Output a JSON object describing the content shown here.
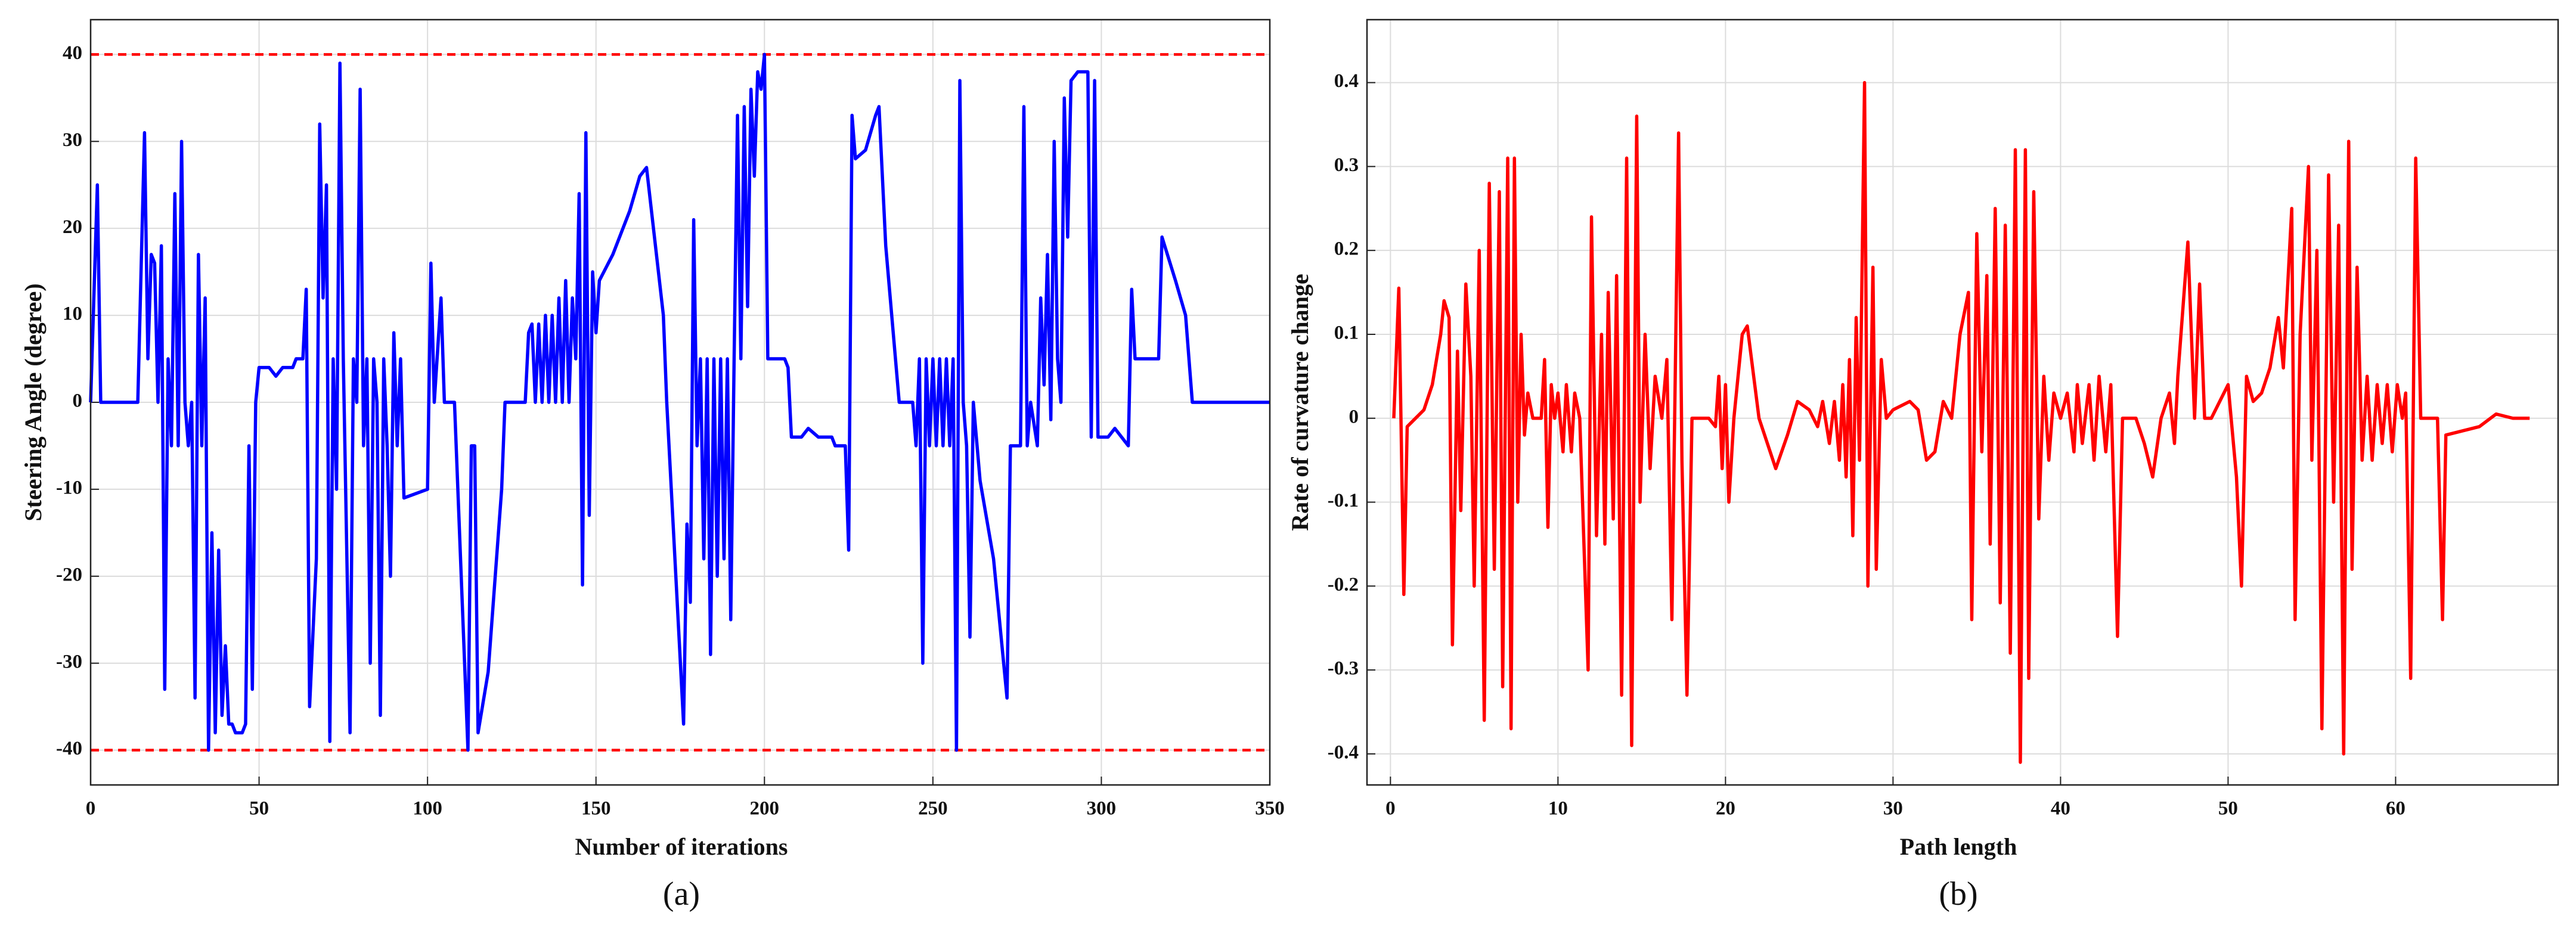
{
  "chart_data": [
    {
      "type": "line",
      "xlabel": "Number of iterations",
      "ylabel": "Steering Angle (degree)",
      "caption": "(a)",
      "xlim": [
        0,
        350
      ],
      "xticks": [
        0,
        50,
        100,
        150,
        200,
        250,
        300,
        350
      ],
      "ylim": [
        -44,
        44
      ],
      "yticks": [
        -40,
        -30,
        -20,
        -10,
        0,
        10,
        20,
        30,
        40
      ],
      "grid": true,
      "reference_lines": [
        {
          "value": 40,
          "color": "#ff0000"
        },
        {
          "value": -40,
          "color": "#ff0000"
        }
      ],
      "x": [
        0,
        2,
        3,
        14,
        16,
        17,
        18,
        19,
        20,
        21,
        22,
        23,
        24,
        25,
        26,
        27,
        28,
        29,
        30,
        31,
        32,
        33,
        34,
        35,
        36,
        37,
        38,
        39,
        40,
        41,
        42,
        43,
        45,
        46,
        47,
        48,
        49,
        50,
        53,
        55,
        57,
        60,
        61,
        63,
        64,
        65,
        67,
        68,
        69,
        70,
        71,
        72,
        73,
        74,
        75,
        77,
        78,
        79,
        80,
        81,
        82,
        83,
        84,
        85,
        86,
        87,
        88,
        89,
        90,
        91,
        92,
        93,
        100,
        101,
        102,
        104,
        105,
        108,
        112,
        113,
        114,
        115,
        118,
        122,
        123,
        129,
        130,
        131,
        132,
        133,
        134,
        135,
        136,
        137,
        138,
        139,
        140,
        141,
        142,
        143,
        144,
        145,
        146,
        147,
        148,
        149,
        150,
        151,
        155,
        160,
        163,
        165,
        170,
        171,
        176,
        177,
        178,
        179,
        180,
        181,
        182,
        183,
        184,
        185,
        186,
        187,
        188,
        189,
        190,
        191,
        192,
        193,
        194,
        195,
        196,
        197,
        198,
        199,
        200,
        201,
        206,
        207,
        208,
        211,
        213,
        216,
        220,
        221,
        224,
        225,
        226,
        227,
        230,
        233,
        234,
        236,
        240,
        244,
        245,
        246,
        247,
        248,
        249,
        250,
        251,
        252,
        253,
        254,
        255,
        256,
        257,
        258,
        259,
        260,
        261,
        262,
        264,
        268,
        272,
        273,
        276,
        277,
        278,
        279,
        281,
        282,
        283,
        284,
        285,
        286,
        287,
        288,
        289,
        290,
        291,
        293,
        296,
        297,
        298,
        299,
        302,
        304,
        308,
        309,
        310,
        317,
        318,
        322,
        325,
        327,
        350
      ],
      "series": [
        {
          "name": "steering",
          "color": "#0000ff",
          "values": [
            0,
            25,
            0,
            0,
            31,
            5,
            17,
            16,
            0,
            18,
            -33,
            5,
            -5,
            24,
            -5,
            30,
            0,
            -5,
            0,
            -34,
            17,
            -5,
            12,
            -40,
            -15,
            -38,
            -17,
            -36,
            -28,
            -37,
            -37,
            -38,
            -38,
            -37,
            -5,
            -33,
            0,
            4,
            4,
            3,
            4,
            4,
            5,
            5,
            13,
            -35,
            -18,
            32,
            12,
            25,
            -39,
            5,
            -10,
            39,
            5,
            -38,
            5,
            0,
            36,
            -5,
            5,
            -30,
            5,
            0,
            -36,
            5,
            -5,
            -20,
            8,
            -5,
            5,
            -11,
            -10,
            16,
            0,
            12,
            0,
            0,
            -40,
            -5,
            -5,
            -38,
            -31,
            -10,
            0,
            0,
            8,
            9,
            0,
            9,
            0,
            10,
            0,
            10,
            0,
            12,
            0,
            14,
            0,
            12,
            5,
            24,
            -21,
            31,
            -13,
            15,
            8,
            14,
            17,
            22,
            26,
            27,
            10,
            0,
            -37,
            -14,
            -23,
            21,
            -5,
            5,
            -18,
            5,
            -29,
            5,
            -20,
            5,
            -18,
            5,
            -25,
            5,
            33,
            5,
            34,
            11,
            36,
            26,
            38,
            36,
            40,
            5,
            5,
            4,
            -4,
            -4,
            -3,
            -4,
            -4,
            -5,
            -5,
            -17,
            33,
            28,
            29,
            33,
            34,
            18,
            0,
            0,
            -5,
            5,
            -30,
            5,
            -5,
            5,
            -5,
            5,
            -5,
            5,
            -5,
            5,
            -40,
            37,
            0,
            -5,
            -27,
            0,
            -9,
            -18,
            -34,
            -5,
            -5,
            34,
            -5,
            0,
            -5,
            12,
            2,
            17,
            -2,
            30,
            5,
            0,
            35,
            19,
            37,
            38,
            38,
            -4,
            37,
            -4,
            -4,
            -3,
            -5,
            13,
            5,
            5,
            19,
            14,
            10,
            0,
            0
          ]
        }
      ]
    },
    {
      "type": "line",
      "xlabel": "Path length",
      "ylabel": "Rate of curvature change",
      "caption": "(b)",
      "xlim": [
        -1.4,
        69.7
      ],
      "xticks": [
        0,
        10,
        20,
        30,
        40,
        50,
        60
      ],
      "ylim": [
        -0.437,
        0.475
      ],
      "yticks": [
        -0.4,
        -0.3,
        -0.2,
        -0.1,
        0,
        0.1,
        0.2,
        0.3,
        0.4
      ],
      "grid": true,
      "x": [
        0.2,
        0.5,
        0.8,
        1,
        1.5,
        2,
        2.5,
        3,
        3.2,
        3.5,
        3.7,
        4,
        4.2,
        4.5,
        4.8,
        5,
        5.3,
        5.6,
        5.9,
        6.2,
        6.5,
        6.7,
        7,
        7.2,
        7.4,
        7.6,
        7.8,
        8,
        8.2,
        8.5,
        9,
        9.2,
        9.4,
        9.6,
        9.8,
        10,
        10.3,
        10.5,
        10.8,
        11,
        11.3,
        11.8,
        12,
        12.3,
        12.6,
        12.8,
        13,
        13.3,
        13.5,
        13.8,
        14.1,
        14.4,
        14.7,
        14.9,
        15.2,
        15.5,
        15.8,
        16.2,
        16.5,
        16.8,
        17.2,
        17.4,
        17.7,
        18,
        19,
        19.4,
        19.6,
        19.8,
        20,
        20.2,
        20.5,
        21,
        21.3,
        22,
        22.5,
        23,
        23.7,
        24,
        24.3,
        25,
        25.5,
        25.8,
        26.2,
        26.5,
        26.8,
        27,
        27.2,
        27.4,
        27.6,
        27.8,
        28,
        28.3,
        28.5,
        28.8,
        29,
        29.3,
        29.6,
        30,
        31,
        31.5,
        32,
        32.5,
        33,
        33.5,
        34,
        34.5,
        34.7,
        35,
        35.3,
        35.6,
        35.8,
        36.1,
        36.4,
        36.7,
        37,
        37.3,
        37.6,
        37.9,
        38.1,
        38.4,
        38.7,
        39,
        39.3,
        39.6,
        40,
        40.4,
        40.8,
        41,
        41.3,
        41.7,
        42,
        42.3,
        42.7,
        43,
        43.4,
        43.7,
        44.5,
        45,
        45.5,
        46,
        46.5,
        46.8,
        47,
        47.6,
        48,
        48.3,
        48.6,
        49,
        49.5,
        50,
        50.5,
        50.8,
        51.1,
        51.5,
        52,
        52.5,
        53,
        53.3,
        53.8,
        54,
        54.3,
        54.8,
        55,
        55.3,
        55.6,
        56,
        56.3,
        56.6,
        56.9,
        57.2,
        57.4,
        57.7,
        58,
        58.3,
        58.6,
        58.9,
        59.2,
        59.5,
        59.8,
        60.1,
        60.4,
        60.6,
        60.9,
        61.2,
        61.5,
        62.5,
        62.8,
        63,
        65,
        66,
        67,
        68
      ],
      "series": [
        {
          "name": "curvature",
          "color": "#ff0000",
          "values": [
            0,
            0.155,
            -0.21,
            -0.01,
            0,
            0.01,
            0.04,
            0.1,
            0.14,
            0.12,
            -0.27,
            0.08,
            -0.11,
            0.16,
            0.05,
            -0.2,
            0.2,
            -0.36,
            0.28,
            -0.18,
            0.27,
            -0.32,
            0.31,
            -0.37,
            0.31,
            -0.1,
            0.1,
            -0.02,
            0.03,
            0,
            0,
            0.07,
            -0.13,
            0.04,
            0,
            0.03,
            -0.04,
            0.04,
            -0.04,
            0.03,
            0,
            -0.3,
            0.24,
            -0.14,
            0.1,
            -0.15,
            0.15,
            -0.12,
            0.17,
            -0.33,
            0.31,
            -0.39,
            0.36,
            -0.1,
            0.1,
            -0.06,
            0.05,
            0,
            0.07,
            -0.24,
            0.34,
            -0.05,
            -0.33,
            0,
            0,
            -0.01,
            0.05,
            -0.06,
            0.04,
            -0.1,
            0,
            0.1,
            0.11,
            0,
            -0.03,
            -0.06,
            -0.02,
            0,
            0.02,
            0.01,
            -0.01,
            0.02,
            -0.03,
            0.02,
            -0.05,
            0.04,
            -0.07,
            0.07,
            -0.14,
            0.12,
            -0.05,
            0.4,
            -0.2,
            0.18,
            -0.18,
            0.07,
            0,
            0.01,
            0.02,
            0.01,
            -0.05,
            -0.04,
            0.02,
            0,
            0.1,
            0.15,
            -0.24,
            0.22,
            -0.04,
            0.17,
            -0.15,
            0.25,
            -0.22,
            0.23,
            -0.28,
            0.32,
            -0.41,
            0.32,
            -0.31,
            0.27,
            -0.12,
            0.05,
            -0.05,
            0.03,
            0,
            0.03,
            -0.04,
            0.04,
            -0.03,
            0.04,
            -0.05,
            0.05,
            -0.04,
            0.04,
            -0.26,
            0,
            0,
            -0.03,
            -0.07,
            0,
            0.03,
            -0.03,
            0.05,
            0.21,
            0,
            0.16,
            0,
            0,
            0.02,
            0.04,
            -0.07,
            -0.2,
            0.05,
            0.02,
            0.03,
            0.06,
            0.12,
            0.06,
            0.25,
            -0.24,
            0.1,
            0.3,
            -0.05,
            0.2,
            -0.37,
            0.29,
            -0.1,
            0.23,
            -0.4,
            0.33,
            -0.18,
            0.18,
            -0.05,
            0.05,
            -0.05,
            0.04,
            -0.03,
            0.04,
            -0.04,
            0.04,
            0,
            0.03,
            -0.31,
            0.31,
            0,
            0,
            -0.24,
            -0.02,
            -0.01,
            0.005,
            0,
            0
          ]
        }
      ]
    }
  ]
}
